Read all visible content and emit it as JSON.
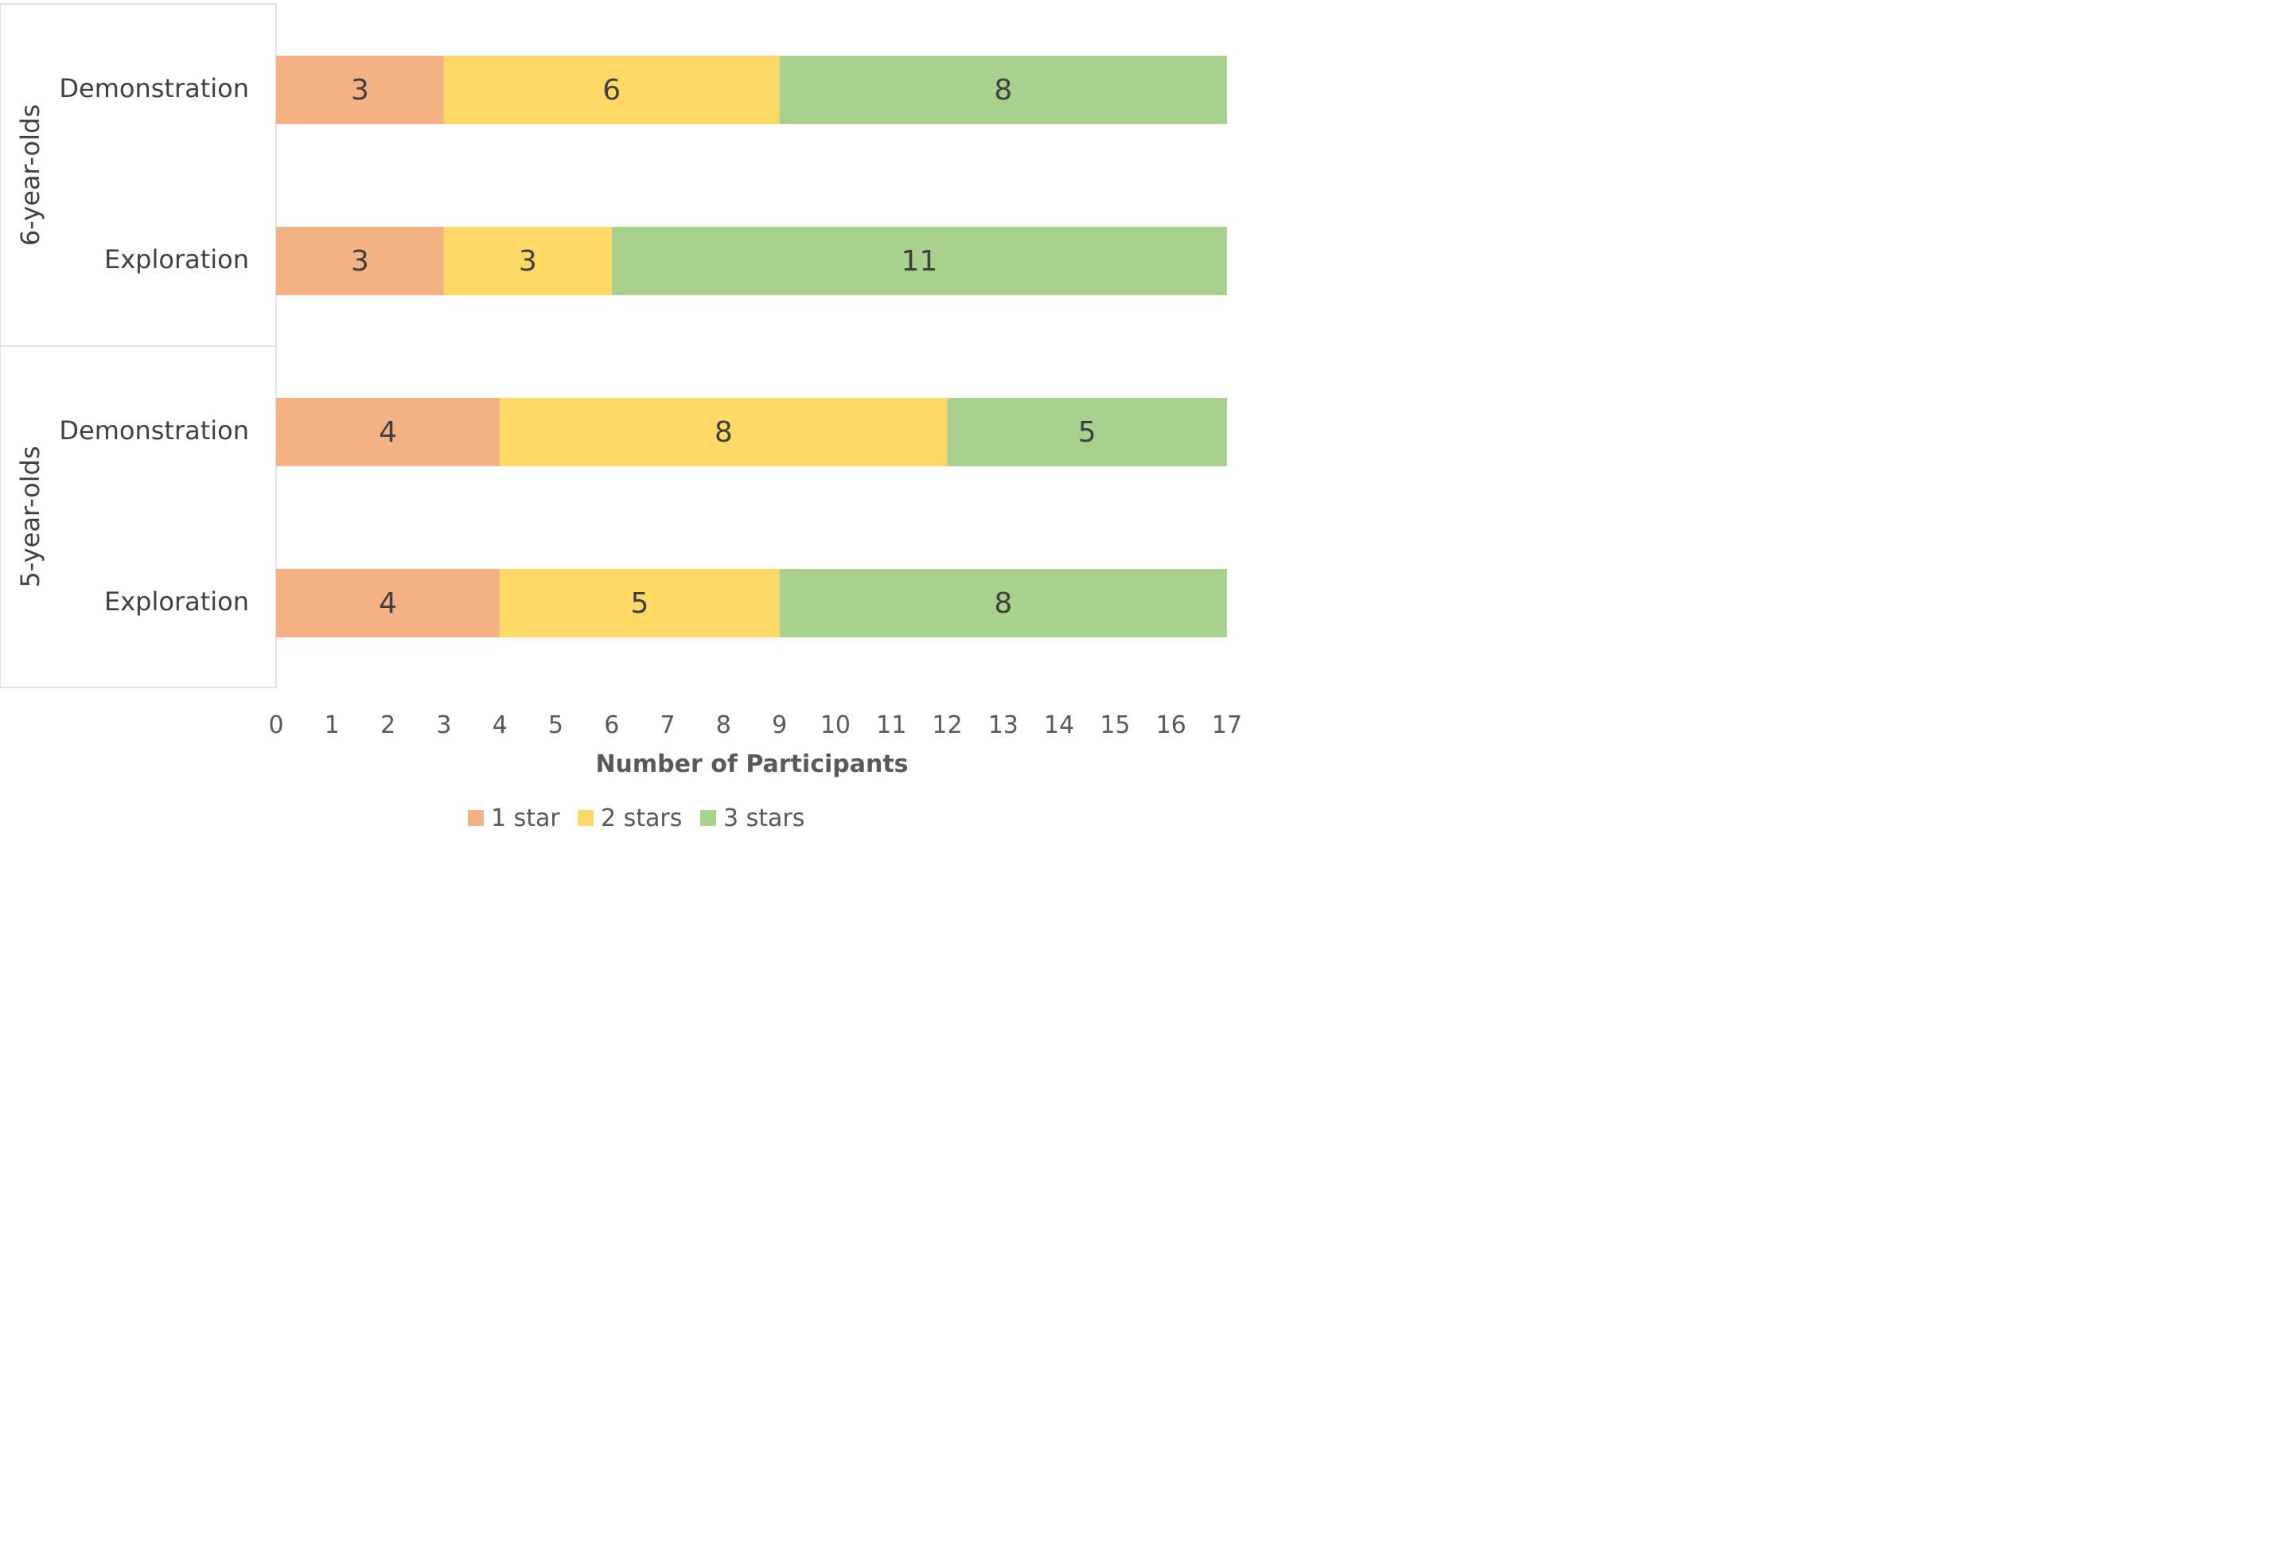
{
  "chart_data": {
    "type": "bar",
    "orientation": "horizontal",
    "stacked": true,
    "xlabel": "Number of Participants",
    "xlim": [
      0,
      17
    ],
    "xticks": [
      0,
      1,
      2,
      3,
      4,
      5,
      6,
      7,
      8,
      9,
      10,
      11,
      12,
      13,
      14,
      15,
      16,
      17
    ],
    "grid": false,
    "legend_position": "bottom",
    "groups": [
      {
        "label": "6-year-olds",
        "categories": [
          "Demonstration",
          "Exploration"
        ]
      },
      {
        "label": "5-year-olds",
        "categories": [
          "Demonstration",
          "Exploration"
        ]
      }
    ],
    "rows": [
      {
        "group": "6-year-olds",
        "category": "Demonstration",
        "values": [
          3,
          6,
          8
        ]
      },
      {
        "group": "6-year-olds",
        "category": "Exploration",
        "values": [
          3,
          3,
          11
        ]
      },
      {
        "group": "5-year-olds",
        "category": "Demonstration",
        "values": [
          4,
          8,
          5
        ]
      },
      {
        "group": "5-year-olds",
        "category": "Exploration",
        "values": [
          4,
          5,
          8
        ]
      }
    ],
    "series": [
      {
        "name": "1 star",
        "color": "#f4b183"
      },
      {
        "name": "2 stars",
        "color": "#ffd966"
      },
      {
        "name": "3 stars",
        "color": "#a9d18e"
      }
    ]
  }
}
